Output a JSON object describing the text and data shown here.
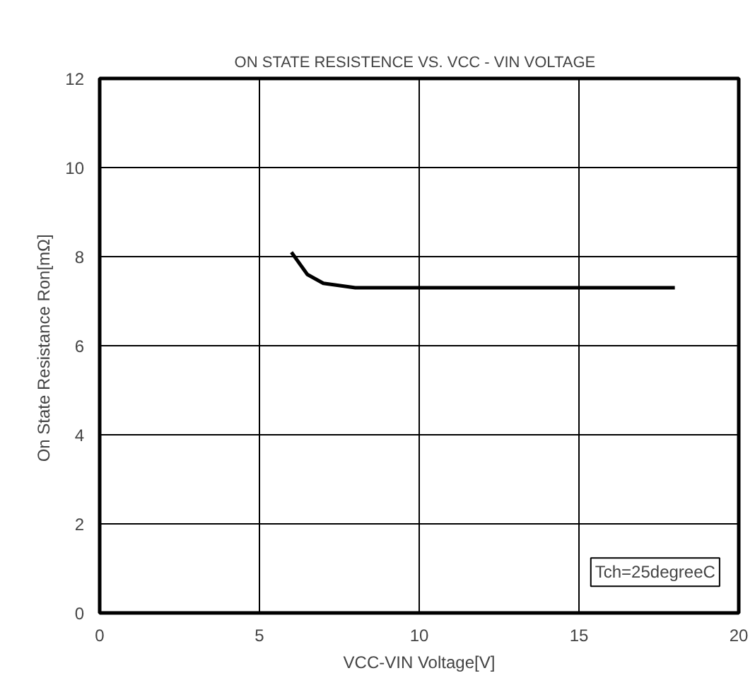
{
  "chart_data": {
    "type": "line",
    "title": "ON STATE RESISTENCE  VS.  VCC - VIN VOLTAGE",
    "xlabel": "VCC-VIN Voltage[V]",
    "ylabel": "On State Resistance  Ron[mΩ]",
    "x": [
      6.0,
      6.5,
      7.0,
      8.0,
      10.0,
      12.0,
      14.0,
      16.0,
      18.0
    ],
    "series": [
      {
        "color": "#000000",
        "values": [
          8.1,
          7.6,
          7.4,
          7.3,
          7.3,
          7.3,
          7.3,
          7.3,
          7.3
        ]
      }
    ],
    "xlim": [
      0,
      20
    ],
    "ylim": [
      0,
      12
    ],
    "xticks": [
      0,
      5,
      10,
      15,
      20
    ],
    "yticks": [
      0,
      2,
      4,
      6,
      8,
      10,
      12
    ],
    "grid": true,
    "annotations": [
      "Tch=25degreeC"
    ]
  }
}
